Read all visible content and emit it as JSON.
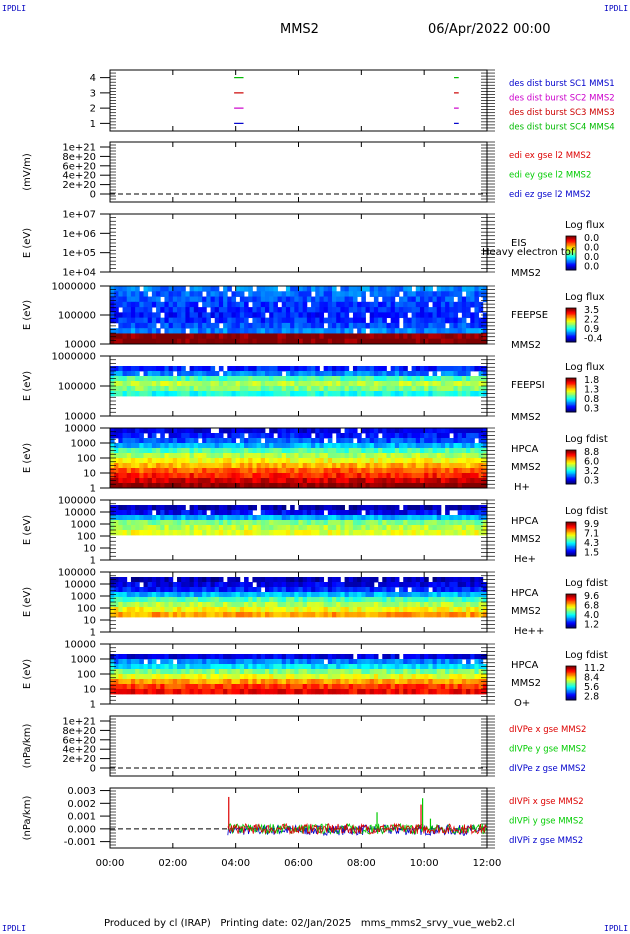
{
  "header": {
    "corner_label": "IPDLI",
    "mission": "MMS2",
    "date": "06/Apr/2022 00:00"
  },
  "footer": {
    "text": "Produced by cl (IRAP)   Printing date: 02/Jan/2025   mms_mms2_srvy_vue_web2.cl"
  },
  "colors": {
    "mms1": "#0000cc",
    "mms2": "#cc00cc",
    "mms3": "#cc0000",
    "mms4": "#00bb00",
    "x": "#dd0000",
    "y": "#00cc00",
    "z": "#0000cc"
  },
  "time_axis": {
    "ticks": [
      "00:00",
      "02:00",
      "04:00",
      "06:00",
      "08:00",
      "10:00",
      "12:00"
    ],
    "range_hours": [
      0,
      12
    ]
  },
  "chart_data": [
    {
      "type": "line",
      "ylabel": "",
      "yticks": [
        "4",
        "3",
        "2",
        "1"
      ],
      "ylim": [
        0.5,
        4.5
      ],
      "legend": [
        {
          "label": "des dist burst SC1 MMS1",
          "color": "#0000cc"
        },
        {
          "label": "des dist burst SC2 MMS2",
          "color": "#cc00cc"
        },
        {
          "label": "des dist burst SC3 MMS3",
          "color": "#cc0000"
        },
        {
          "label": "des dist burst SC4 MMS4",
          "color": "#00bb00"
        }
      ],
      "series": [
        {
          "sc": 4,
          "segments": [
            [
              3.95,
              4.25
            ],
            [
              10.95,
              11.1
            ]
          ]
        },
        {
          "sc": 3,
          "segments": [
            [
              3.95,
              4.25
            ],
            [
              10.95,
              11.1
            ]
          ]
        },
        {
          "sc": 2,
          "segments": [
            [
              3.95,
              4.25
            ],
            [
              10.95,
              11.1
            ]
          ]
        },
        {
          "sc": 1,
          "segments": [
            [
              3.95,
              4.25
            ],
            [
              10.95,
              11.1
            ]
          ]
        }
      ]
    },
    {
      "type": "line",
      "ylabel": "(mV/m)",
      "yticks": [
        "1e+21",
        "8e+20",
        "6e+20",
        "4e+20",
        "2e+20",
        "0"
      ],
      "legend": [
        {
          "label": "edi ex gse l2 MMS2",
          "color": "#dd0000"
        },
        {
          "label": "edi ey gse l2 MMS2",
          "color": "#00cc00"
        },
        {
          "label": "edi ez gse l2 MMS2",
          "color": "#0000cc"
        }
      ],
      "zero_line": true
    },
    {
      "type": "heatmap",
      "ylabel": "E (eV)",
      "yticks": [
        "1e+07",
        "1e+06",
        "1e+05",
        "1e+04"
      ],
      "instrument": [
        "EIS",
        "MMS2"
      ],
      "overlay_text": "Heavy electron tof",
      "colorbar": {
        "title": "Log flux",
        "labels": [
          "0.0",
          "0.0",
          "0.0",
          "0.0"
        ]
      },
      "data_present": false
    },
    {
      "type": "heatmap",
      "ylabel": "E (eV)",
      "yticks": [
        "1000000",
        "100000",
        "10000"
      ],
      "instrument": [
        "FEEPSE",
        "MMS2"
      ],
      "colorbar": {
        "title": "Log flux",
        "labels": [
          "3.5",
          "2.2",
          "0.9",
          "-0.4"
        ]
      },
      "band_levels": [
        0.25,
        0.22,
        0.2,
        0.18,
        0.16,
        0.15,
        0.17,
        0.2,
        0.25,
        1.0,
        1.0
      ]
    },
    {
      "type": "heatmap",
      "ylabel": "E (eV)",
      "yticks": [
        "1000000",
        "100000",
        "10000"
      ],
      "instrument": [
        "FEEPSI",
        "MMS2"
      ],
      "colorbar": {
        "title": "Log flux",
        "labels": [
          "1.8",
          "1.3",
          "0.8",
          "0.3"
        ]
      },
      "band_levels": [
        0.0,
        0.0,
        0.15,
        0.25,
        0.45,
        0.55,
        0.5,
        0.4,
        0.0,
        0.0,
        0.0,
        0.0
      ]
    },
    {
      "type": "heatmap",
      "ylabel": "E (eV)",
      "yticks": [
        "10000",
        "1000",
        "100",
        "10",
        "1"
      ],
      "instrument": [
        "HPCA",
        "MMS2",
        "H+"
      ],
      "colorbar": {
        "title": "Log fdist",
        "labels": [
          "8.8",
          "6.0",
          "3.2",
          "0.3"
        ]
      },
      "band_levels": [
        0.1,
        0.15,
        0.2,
        0.3,
        0.45,
        0.55,
        0.62,
        0.7,
        0.78,
        0.85,
        0.92,
        1.0
      ]
    },
    {
      "type": "heatmap",
      "ylabel": "E (eV)",
      "yticks": [
        "100000",
        "10000",
        "1000",
        "100",
        "10",
        "1"
      ],
      "instrument": [
        "HPCA",
        "MMS2",
        "He+"
      ],
      "colorbar": {
        "title": "Log fdist",
        "labels": [
          "9.9",
          "7.1",
          "4.3",
          "1.5"
        ]
      },
      "band_levels": [
        0.0,
        0.05,
        0.12,
        0.3,
        0.5,
        0.55,
        0.6,
        0.0,
        0.0,
        0.0,
        0.0,
        0.0
      ]
    },
    {
      "type": "heatmap",
      "ylabel": "E (eV)",
      "yticks": [
        "100000",
        "10000",
        "1000",
        "100",
        "10",
        "1"
      ],
      "instrument": [
        "HPCA",
        "MMS2",
        "He++"
      ],
      "colorbar": {
        "title": "Log fdist",
        "labels": [
          "9.6",
          "6.8",
          "4.0",
          "1.2"
        ]
      },
      "band_levels": [
        0.0,
        0.05,
        0.1,
        0.15,
        0.3,
        0.45,
        0.55,
        0.62,
        0.72,
        0.0,
        0.0,
        0.0
      ]
    },
    {
      "type": "heatmap",
      "ylabel": "E (eV)",
      "yticks": [
        "10000",
        "1000",
        "100",
        "10",
        "1"
      ],
      "instrument": [
        "HPCA",
        "MMS2",
        "O+"
      ],
      "colorbar": {
        "title": "Log fdist",
        "labels": [
          "11.2",
          "8.4",
          "5.6",
          "2.8"
        ]
      },
      "band_levels": [
        0.0,
        0.0,
        0.1,
        0.25,
        0.35,
        0.5,
        0.6,
        0.72,
        0.82,
        0.88,
        0.0,
        0.0
      ]
    },
    {
      "type": "line",
      "ylabel": "(nPa/km)",
      "yticks": [
        "1e+21",
        "8e+20",
        "6e+20",
        "4e+20",
        "2e+20",
        "0"
      ],
      "legend": [
        {
          "label": "dIVPe x gse MMS2",
          "color": "#dd0000"
        },
        {
          "label": "dIVPe y gse MMS2",
          "color": "#00cc00"
        },
        {
          "label": "dIVPe z gse MMS2",
          "color": "#0000cc"
        }
      ],
      "zero_line": true
    },
    {
      "type": "line",
      "ylabel": "(nPa/km)",
      "yticks": [
        "0.003",
        "0.002",
        "0.001",
        "0.000",
        "-0.001"
      ],
      "ylim": [
        -0.0015,
        0.0032
      ],
      "legend": [
        {
          "label": "dIVPi x gse MMS2",
          "color": "#dd0000"
        },
        {
          "label": "dIVPi y gse MMS2",
          "color": "#00cc00"
        },
        {
          "label": "dIVPi z gse MMS2",
          "color": "#0000cc"
        }
      ],
      "zero_line": true,
      "data_start_hour": 3.75,
      "spikes": [
        {
          "series": "x",
          "t": 3.78,
          "v": 0.0025
        },
        {
          "series": "x",
          "t": 9.9,
          "v": 0.0019
        },
        {
          "series": "y",
          "t": 9.95,
          "v": 0.0024
        },
        {
          "series": "y",
          "t": 8.5,
          "v": 0.0013
        },
        {
          "series": "y",
          "t": 10.2,
          "v": 0.0008
        }
      ]
    }
  ]
}
